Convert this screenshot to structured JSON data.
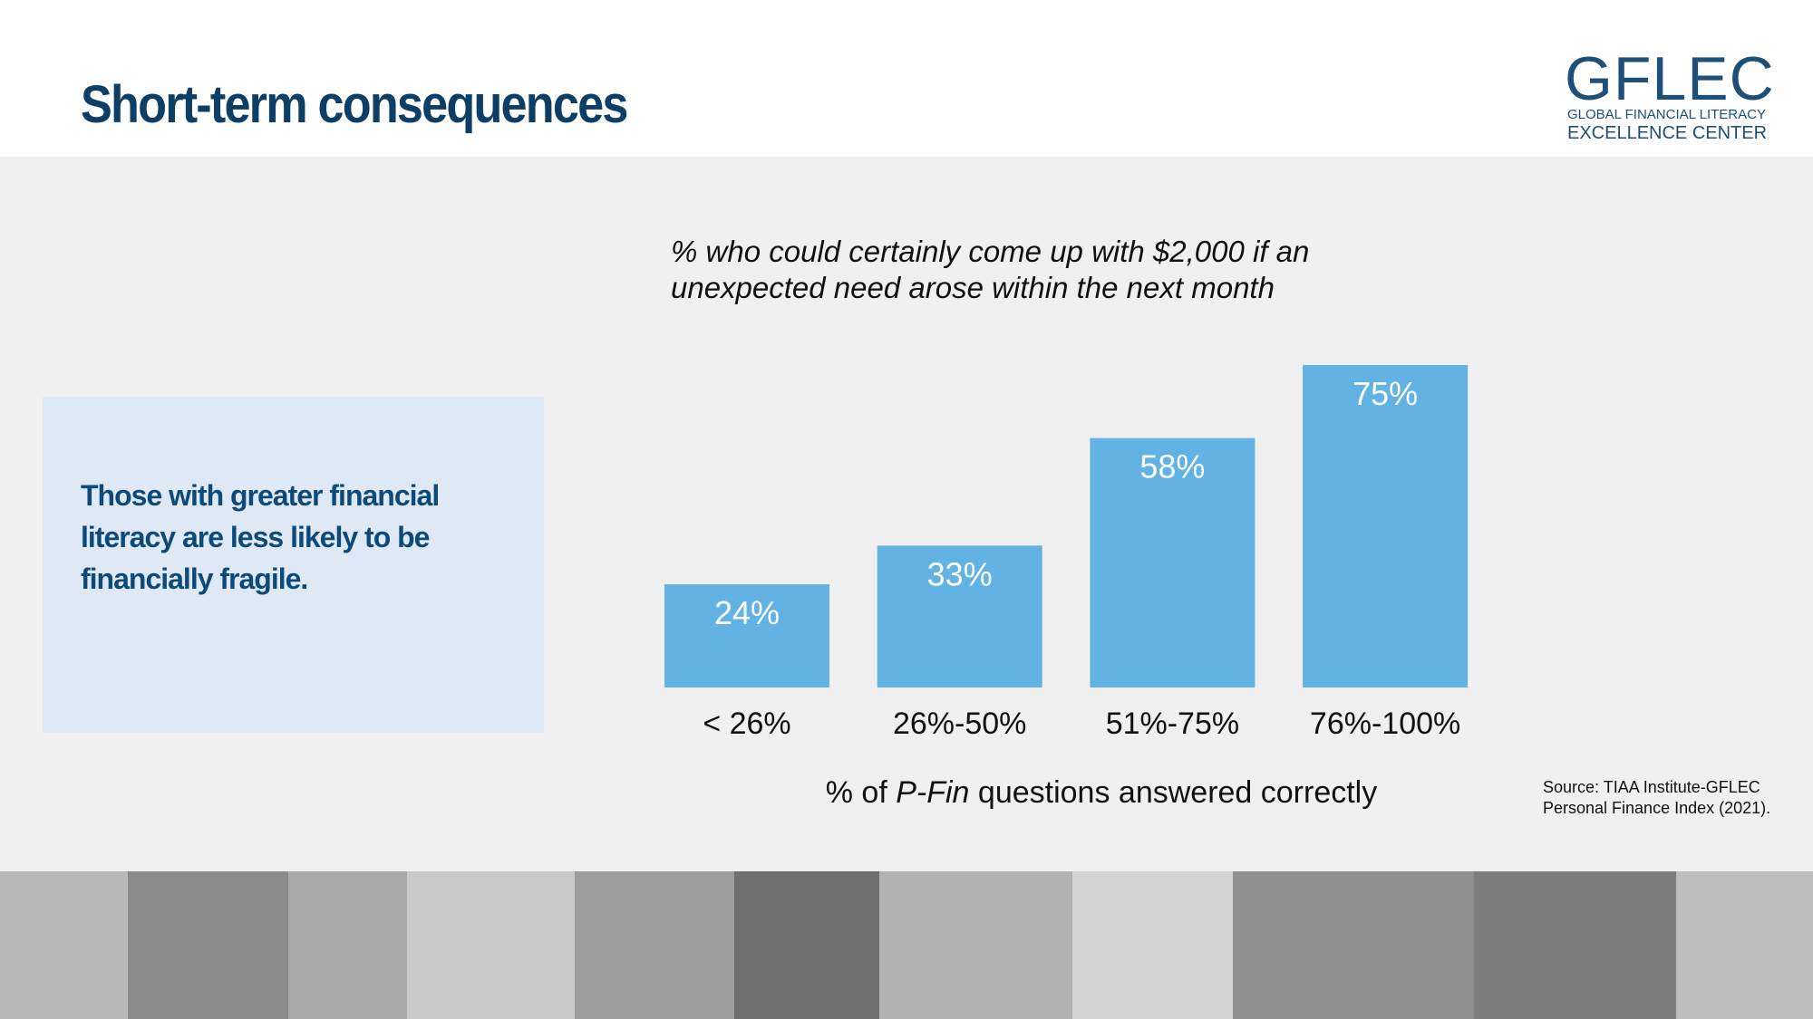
{
  "header": {
    "title": "Short-term consequences",
    "logo": {
      "name": "GFLEC",
      "line1": "GLOBAL FINANCIAL LITERACY",
      "line2": "EXCELLENCE CENTER"
    }
  },
  "callout": "Those with greater financial literacy are less likely to be financially fragile.",
  "chart_data": {
    "type": "bar",
    "title": "% who could certainly come up with $2,000 if an unexpected need arose within the next month",
    "x_label": [
      "% of ",
      "P-Fin",
      " questions answered correctly"
    ],
    "categories": [
      "< 26%",
      "26%-50%",
      "51%-75%",
      "76%-100%"
    ],
    "values": [
      24,
      33,
      58,
      75
    ],
    "value_labels": [
      "24%",
      "33%",
      "58%",
      "75%"
    ],
    "color": "#62b3e3"
  },
  "source": "Source: TIAA Institute-GFLEC Personal Finance Index (2021)."
}
